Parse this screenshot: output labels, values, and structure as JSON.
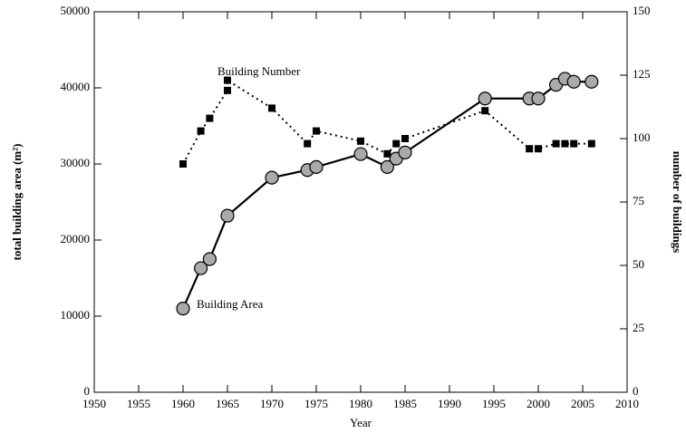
{
  "chart_data": {
    "type": "line",
    "xlabel": "Year",
    "ylabel": "total building area (m²)",
    "y2label": "number of buildings",
    "annotations": [
      "Building Number",
      "Building Area"
    ],
    "xlim": [
      1950,
      2010
    ],
    "xticks": [
      1950,
      1955,
      1960,
      1965,
      1970,
      1975,
      1980,
      1985,
      1990,
      1995,
      2000,
      2005,
      2010
    ],
    "ylim": [
      0,
      50000
    ],
    "yticks": [
      0,
      10000,
      20000,
      30000,
      40000,
      50000
    ],
    "y2lim": [
      0,
      150
    ],
    "y2ticks": [
      0,
      25,
      50,
      75,
      100,
      125,
      150
    ],
    "series": [
      {
        "name": "Building Area",
        "color": "#aaaaaa",
        "marker": "circle",
        "linestyle": "solid",
        "x": [
          1960,
          1962,
          1963,
          1965,
          1970,
          1974,
          1975,
          1980,
          1983,
          1984,
          1985,
          1994,
          1999,
          2000,
          2002,
          2003,
          2004,
          2006
        ],
        "values": [
          11000,
          16300,
          17500,
          23200,
          28200,
          29200,
          29600,
          31300,
          29600,
          30700,
          31500,
          38600,
          38600,
          38600,
          40400,
          41200,
          40800,
          40800
        ]
      },
      {
        "name": "Building Number",
        "color": "#000000",
        "marker": "square",
        "linestyle": "dotted",
        "axis": "y2",
        "x": [
          1960,
          1962,
          1963,
          1965,
          1965,
          1970,
          1974,
          1975,
          1980,
          1983,
          1984,
          1985,
          1994,
          1999,
          2000,
          2002,
          2003,
          2004,
          2006
        ],
        "values": [
          90,
          103,
          108,
          119,
          123,
          112,
          98,
          103,
          99,
          94,
          98,
          100,
          111,
          96,
          96,
          98,
          98,
          98,
          98
        ]
      }
    ]
  }
}
